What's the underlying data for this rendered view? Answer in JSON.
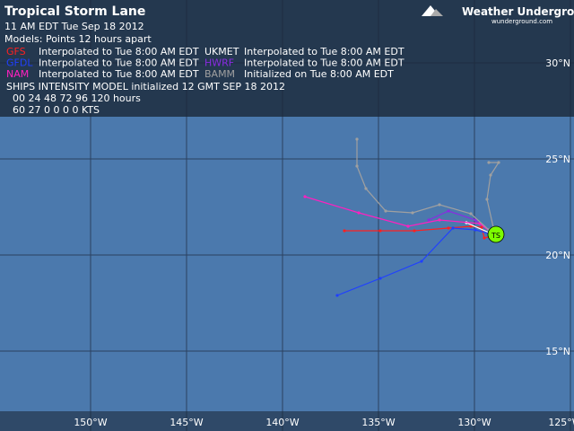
{
  "header": {
    "title": "Tropical Storm Lane",
    "date": "11 AM EDT Tue Sep 18 2012",
    "models": "Models:   Points 12 hours apart",
    "logo": "Weather Underground",
    "logo_sub": "wunderground.com"
  },
  "legend": [
    [
      {
        "name": "GFS",
        "color": "#ff2020",
        "note": "Interpolated to Tue 8:00 AM EDT"
      },
      {
        "name": "UKMET",
        "color": "#ffffff",
        "note": "Interpolated to Tue 8:00 AM EDT"
      }
    ],
    [
      {
        "name": "GFDL",
        "color": "#2040ff",
        "note": "Interpolated to Tue 8:00 AM EDT"
      },
      {
        "name": "HWRF",
        "color": "#8a2be2",
        "note": "Interpolated to Tue 8:00 AM EDT"
      }
    ],
    [
      {
        "name": "NAM",
        "color": "#ff20c0",
        "note": "Interpolated to Tue 8:00 AM EDT"
      },
      {
        "name": "BAMM",
        "color": "#a0a0a0",
        "note": "Initialized on Tue 8:00 AM EDT"
      }
    ]
  ],
  "ships": {
    "title": "SHIPS INTENSITY MODEL initialized 12 GMT SEP 18 2012",
    "hours": "00  24  48  72  96  120 hours",
    "kts": "60  27  0  0  0  0  KTS"
  },
  "map": {
    "lat_labels": [
      "30°N",
      "25°N",
      "20°N",
      "15°N"
    ],
    "lon_labels": [
      "150°W",
      "145°W",
      "140°W",
      "135°W",
      "130°W",
      "125°W"
    ],
    "storm": "TS"
  }
}
